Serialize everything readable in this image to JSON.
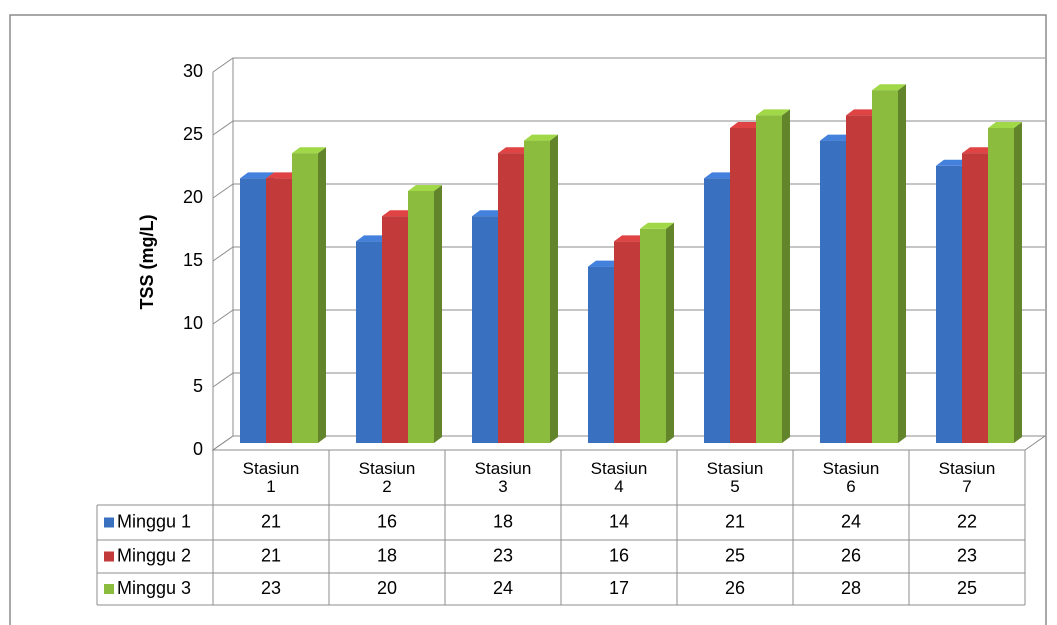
{
  "chart_data": {
    "type": "bar",
    "y_label": "TSS (mg/L)",
    "categories": [
      "Stasiun 1",
      "Stasiun 2",
      "Stasiun 3",
      "Stasiun 4",
      "Stasiun 5",
      "Stasiun 6",
      "Stasiun 7"
    ],
    "series": [
      {
        "name": "Minggu 1",
        "color": "#3a70c0",
        "values": [
          21,
          16,
          18,
          14,
          21,
          24,
          22
        ]
      },
      {
        "name": "Minggu 2",
        "color": "#c23a3a",
        "values": [
          21,
          18,
          23,
          16,
          25,
          26,
          23
        ]
      },
      {
        "name": "Minggu 3",
        "color": "#8cbc3e",
        "values": [
          23,
          20,
          24,
          17,
          26,
          28,
          25
        ]
      }
    ],
    "ylim": [
      0,
      30
    ],
    "yticks": [
      0,
      5,
      10,
      15,
      20,
      25,
      30
    ],
    "grid": true
  }
}
